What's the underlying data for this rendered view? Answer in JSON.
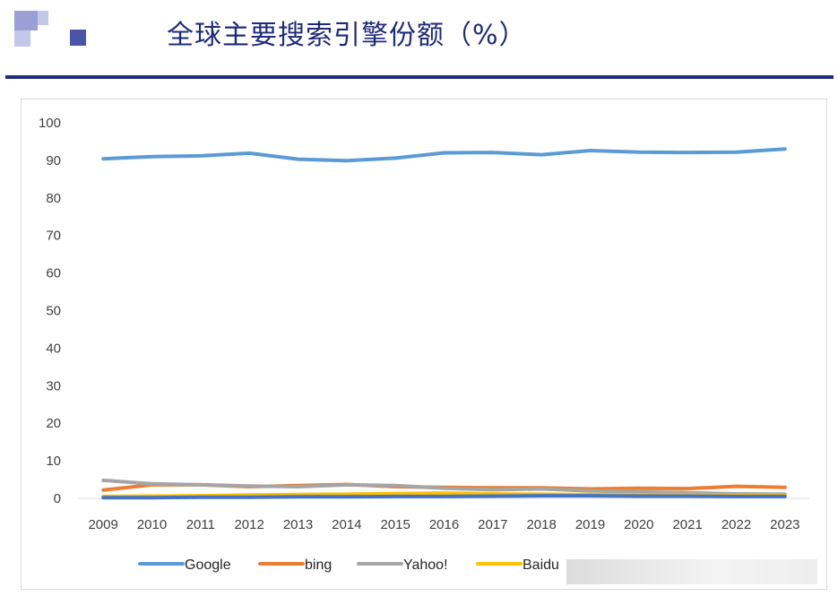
{
  "header": {
    "title": "全球主要搜索引擎份额（%）",
    "accent_color": "#1f2a7a",
    "logo_colors": [
      "#9aa0d6",
      "#c3c7e8",
      "#4a55a8"
    ]
  },
  "chart_data": {
    "type": "line",
    "title": "",
    "xlabel": "",
    "ylabel": "",
    "ylim": [
      0,
      100
    ],
    "yticks": [
      "0",
      "10",
      "20",
      "30",
      "40",
      "50",
      "60",
      "70",
      "80",
      "90",
      "100"
    ],
    "grid": false,
    "legend_position": "bottom",
    "categories": [
      "2009",
      "2010",
      "2011",
      "2012",
      "2013",
      "2014",
      "2015",
      "2016",
      "2017",
      "2018",
      "2019",
      "2020",
      "2021",
      "2022",
      "2023"
    ],
    "series": [
      {
        "name": "Google",
        "color": "#5b9bd5",
        "values": [
          90.4,
          91.0,
          91.2,
          91.9,
          90.3,
          89.9,
          90.6,
          92.0,
          92.1,
          91.5,
          92.6,
          92.2,
          92.1,
          92.2,
          93.0
        ]
      },
      {
        "name": "bing",
        "color": "#ed7d31",
        "values": [
          2.2,
          3.6,
          3.6,
          3.1,
          3.4,
          3.7,
          3.1,
          2.9,
          2.8,
          2.8,
          2.5,
          2.7,
          2.6,
          3.2,
          2.9
        ]
      },
      {
        "name": "Yahoo!",
        "color": "#a5a5a5",
        "values": [
          4.8,
          3.9,
          3.6,
          3.3,
          3.1,
          3.6,
          3.4,
          2.7,
          2.3,
          2.5,
          2.0,
          1.7,
          1.5,
          1.2,
          1.1
        ]
      },
      {
        "name": "Baidu",
        "color": "#ffc000",
        "values": [
          0.5,
          0.6,
          0.7,
          0.9,
          1.0,
          1.1,
          1.3,
          1.4,
          1.2,
          1.1,
          1.0,
          0.9,
          0.9,
          0.8,
          0.8
        ]
      },
      {
        "name": "",
        "color": "#4472c4",
        "values": [
          0.2,
          0.2,
          0.3,
          0.3,
          0.4,
          0.4,
          0.5,
          0.5,
          0.6,
          0.7,
          0.7,
          0.6,
          0.6,
          0.5,
          0.5
        ]
      }
    ],
    "legend_visible_labels": [
      "Google",
      "bing",
      "Yahoo!",
      "Baidu"
    ]
  }
}
